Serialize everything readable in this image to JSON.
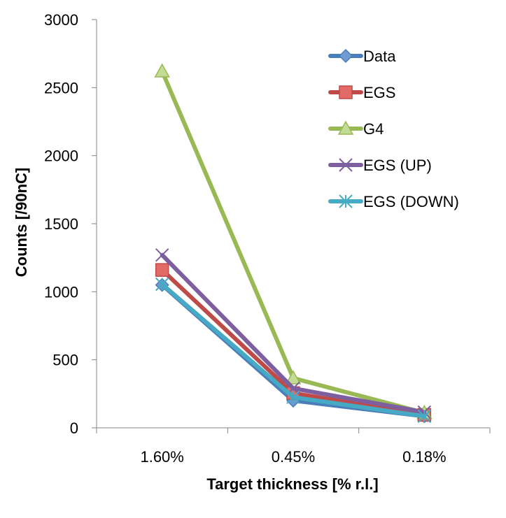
{
  "chart_data": {
    "type": "line",
    "categories": [
      "1.60%",
      "0.45%",
      "0.18%"
    ],
    "xlabel": "Target thickness [% r.l.]",
    "ylabel": "Counts [/90nC]",
    "ylim": [
      0,
      3000
    ],
    "yticks": [
      0,
      500,
      1000,
      1500,
      2000,
      2500,
      3000
    ],
    "grid": false,
    "legend_position": "top-right",
    "series": [
      {
        "name": "Data",
        "values": [
          1050,
          200,
          85
        ],
        "color": "#4a7ebb",
        "marker": "diamond"
      },
      {
        "name": "EGS",
        "values": [
          1160,
          255,
          95
        ],
        "color": "#be4b48",
        "marker": "square"
      },
      {
        "name": "G4",
        "values": [
          2620,
          365,
          110
        ],
        "color": "#98b954",
        "marker": "triangle"
      },
      {
        "name": "EGS (UP)",
        "values": [
          1270,
          290,
          115
        ],
        "color": "#7d5fa0",
        "marker": "x"
      },
      {
        "name": "EGS (DOWN)",
        "values": [
          1055,
          225,
          85
        ],
        "color": "#46aac5",
        "marker": "star"
      }
    ]
  }
}
